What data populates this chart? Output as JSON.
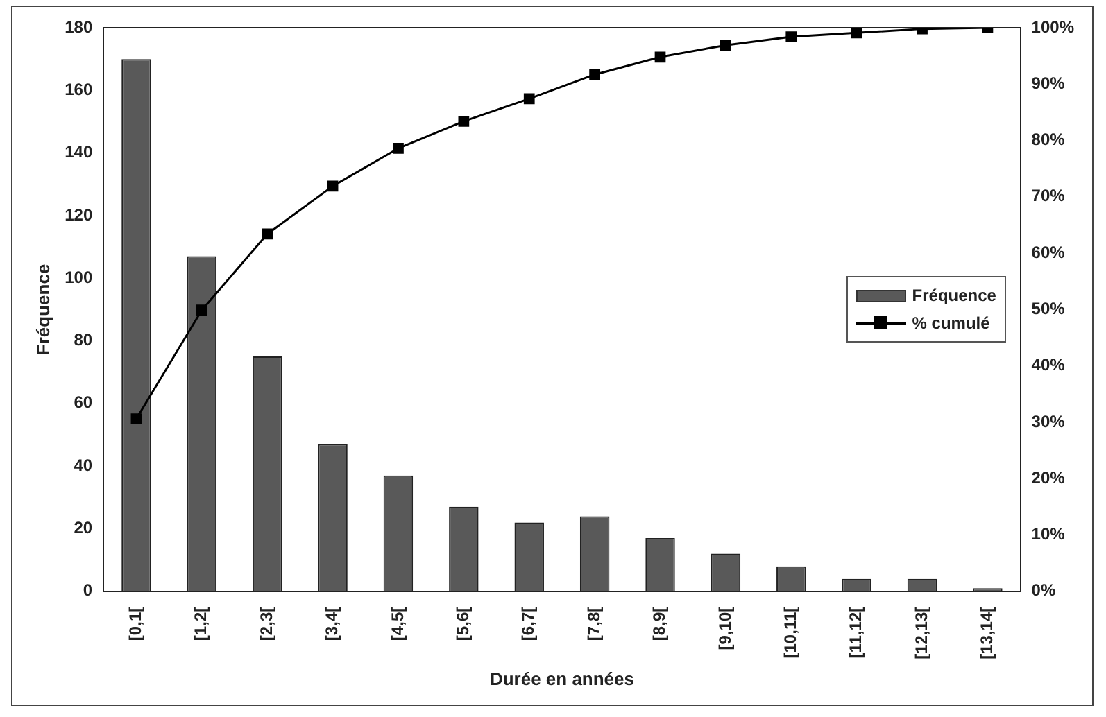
{
  "chart_data": {
    "type": "bar",
    "xlabel": "Durée en années",
    "ylabel": "Fréquence",
    "categories": [
      "[0,1[",
      "[1,2[",
      "[2,3[",
      "[3,4[",
      "[4,5[",
      "[5,6[",
      "[6,7[",
      "[7,8[",
      "[8,9[",
      "[9,10[",
      "[10,11[",
      "[11,12[",
      "[12,13[",
      "[13,14["
    ],
    "series": [
      {
        "name": "Fréquence",
        "color": "#595959",
        "values": [
          170,
          107,
          75,
          47,
          37,
          27,
          22,
          24,
          17,
          12,
          8,
          4,
          4,
          1
        ]
      },
      {
        "name": "% cumulé",
        "type": "line",
        "axis": "y2",
        "color": "#000000",
        "marker": "square",
        "values": [
          30.6,
          49.9,
          63.4,
          71.9,
          78.6,
          83.4,
          87.4,
          91.7,
          94.8,
          96.9,
          98.4,
          99.1,
          99.8,
          100
        ]
      }
    ],
    "ylim": [
      0,
      180
    ],
    "yticks": [
      0,
      20,
      40,
      60,
      80,
      100,
      120,
      140,
      160,
      180
    ],
    "y2lim": [
      0,
      100
    ],
    "y2ticks": [
      {
        "value": 0,
        "label": "0%"
      },
      {
        "value": 10,
        "label": "10%"
      },
      {
        "value": 20,
        "label": "20%"
      },
      {
        "value": 30,
        "label": "30%"
      },
      {
        "value": 40,
        "label": "40%"
      },
      {
        "value": 50,
        "label": "50%"
      },
      {
        "value": 60,
        "label": "60%"
      },
      {
        "value": 70,
        "label": "70%"
      },
      {
        "value": 80,
        "label": "80%"
      },
      {
        "value": 90,
        "label": "90%"
      },
      {
        "value": 100,
        "label": "100%"
      }
    ],
    "grid": false,
    "legend": "right"
  }
}
